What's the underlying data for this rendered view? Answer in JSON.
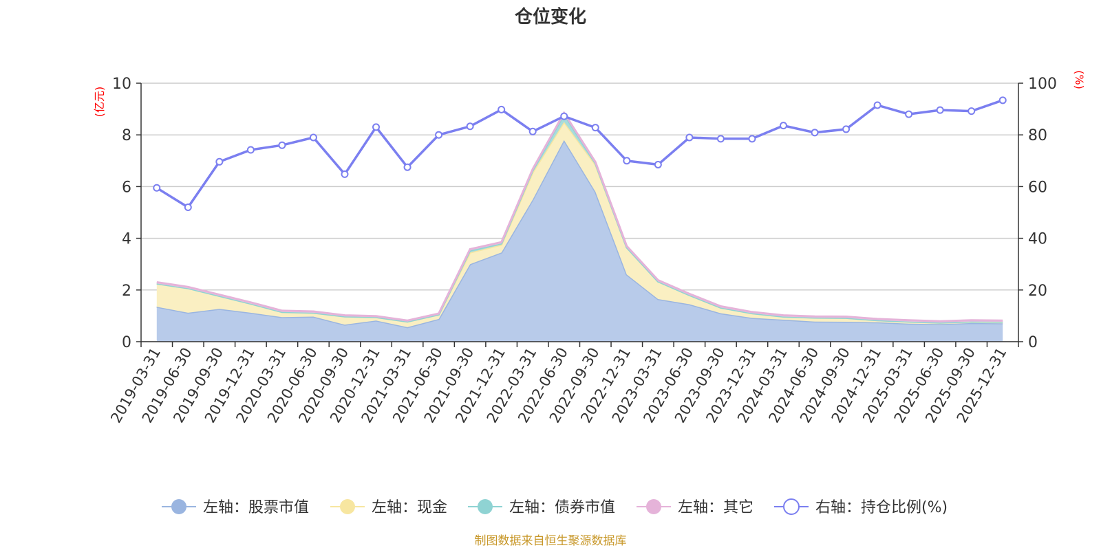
{
  "chart_data": {
    "type": "area",
    "title": "仓位变化",
    "left_axis_unit": "(亿元)",
    "right_axis_unit": "(%)",
    "left_ylim": [
      0,
      10
    ],
    "left_ticks": [
      "0",
      "2",
      "4",
      "6",
      "8",
      "10"
    ],
    "right_ylim": [
      0,
      100
    ],
    "right_ticks": [
      "0",
      "20",
      "40",
      "60",
      "80",
      "100"
    ],
    "categories": [
      "2019-03-31",
      "2019-06-30",
      "2019-09-30",
      "2019-12-31",
      "2020-03-31",
      "2020-06-30",
      "2020-09-30",
      "2020-12-31",
      "2021-03-31",
      "2021-06-30",
      "2021-09-30",
      "2021-12-31",
      "2022-03-31",
      "2022-06-30",
      "2022-09-30",
      "2022-12-31",
      "2023-03-31",
      "2023-06-30",
      "2023-09-30",
      "2023-12-31",
      "2024-03-31",
      "2024-06-30",
      "2024-09-30",
      "2024-12-31",
      "2025-03-31",
      "2025-06-30",
      "2025-09-30",
      "2025-12-31"
    ],
    "series": [
      {
        "name": "左轴：股票市值",
        "axis": "left",
        "stacked": true,
        "color": "#9ab5e0",
        "fill": "#b8cbea",
        "values": [
          1.35,
          1.12,
          1.27,
          1.12,
          0.95,
          0.97,
          0.66,
          0.82,
          0.56,
          0.88,
          3.0,
          3.45,
          5.5,
          7.8,
          5.8,
          2.6,
          1.65,
          1.45,
          1.1,
          0.92,
          0.85,
          0.78,
          0.77,
          0.75,
          0.7,
          0.68,
          0.72,
          0.71
        ]
      },
      {
        "name": "左轴：现金",
        "axis": "left",
        "stacked": true,
        "color": "#f7e6a0",
        "fill": "#faefc2",
        "values": [
          0.9,
          0.95,
          0.5,
          0.35,
          0.2,
          0.15,
          0.32,
          0.13,
          0.22,
          0.17,
          0.45,
          0.3,
          1.05,
          0.7,
          1.05,
          1.05,
          0.68,
          0.35,
          0.22,
          0.18,
          0.12,
          0.15,
          0.15,
          0.08,
          0.08,
          0.06,
          0.06,
          0.06
        ]
      },
      {
        "name": "左轴：债券市值",
        "axis": "left",
        "stacked": true,
        "color": "#8fd3d3",
        "fill": "#a8dcdc",
        "values": [
          0,
          0,
          0,
          0,
          0,
          0,
          0,
          0,
          0,
          0,
          0.08,
          0.05,
          0.08,
          0.3,
          0.05,
          0,
          0,
          0,
          0,
          0,
          0,
          0,
          0,
          0,
          0,
          0,
          0,
          0
        ]
      },
      {
        "name": "左轴：其它",
        "axis": "left",
        "stacked": true,
        "color": "#e5b3d9",
        "fill": "#efc9e4",
        "values": [
          0.05,
          0.05,
          0.05,
          0.05,
          0.05,
          0.05,
          0.04,
          0.04,
          0.04,
          0.04,
          0.05,
          0.05,
          0.05,
          0.05,
          0.05,
          0.05,
          0.05,
          0.05,
          0.05,
          0.05,
          0.05,
          0.05,
          0.05,
          0.05,
          0.05,
          0.05,
          0.05,
          0.05
        ]
      },
      {
        "name": "右轴：持仓比例(%)",
        "axis": "right",
        "stacked": false,
        "color": "#7b7ff0",
        "fill": "none",
        "values": [
          59.5,
          52.0,
          69.6,
          74.2,
          76.0,
          79.0,
          64.8,
          83.0,
          67.5,
          80.0,
          83.3,
          89.8,
          81.3,
          87.2,
          82.8,
          70.0,
          68.5,
          79.0,
          78.5,
          78.5,
          83.6,
          80.9,
          82.2,
          91.5,
          88.0,
          89.6,
          89.2,
          93.4
        ]
      }
    ],
    "legend_position": "bottom-center",
    "grid": true
  },
  "footer": {
    "source": "制图数据来自恒生聚源数据库"
  }
}
